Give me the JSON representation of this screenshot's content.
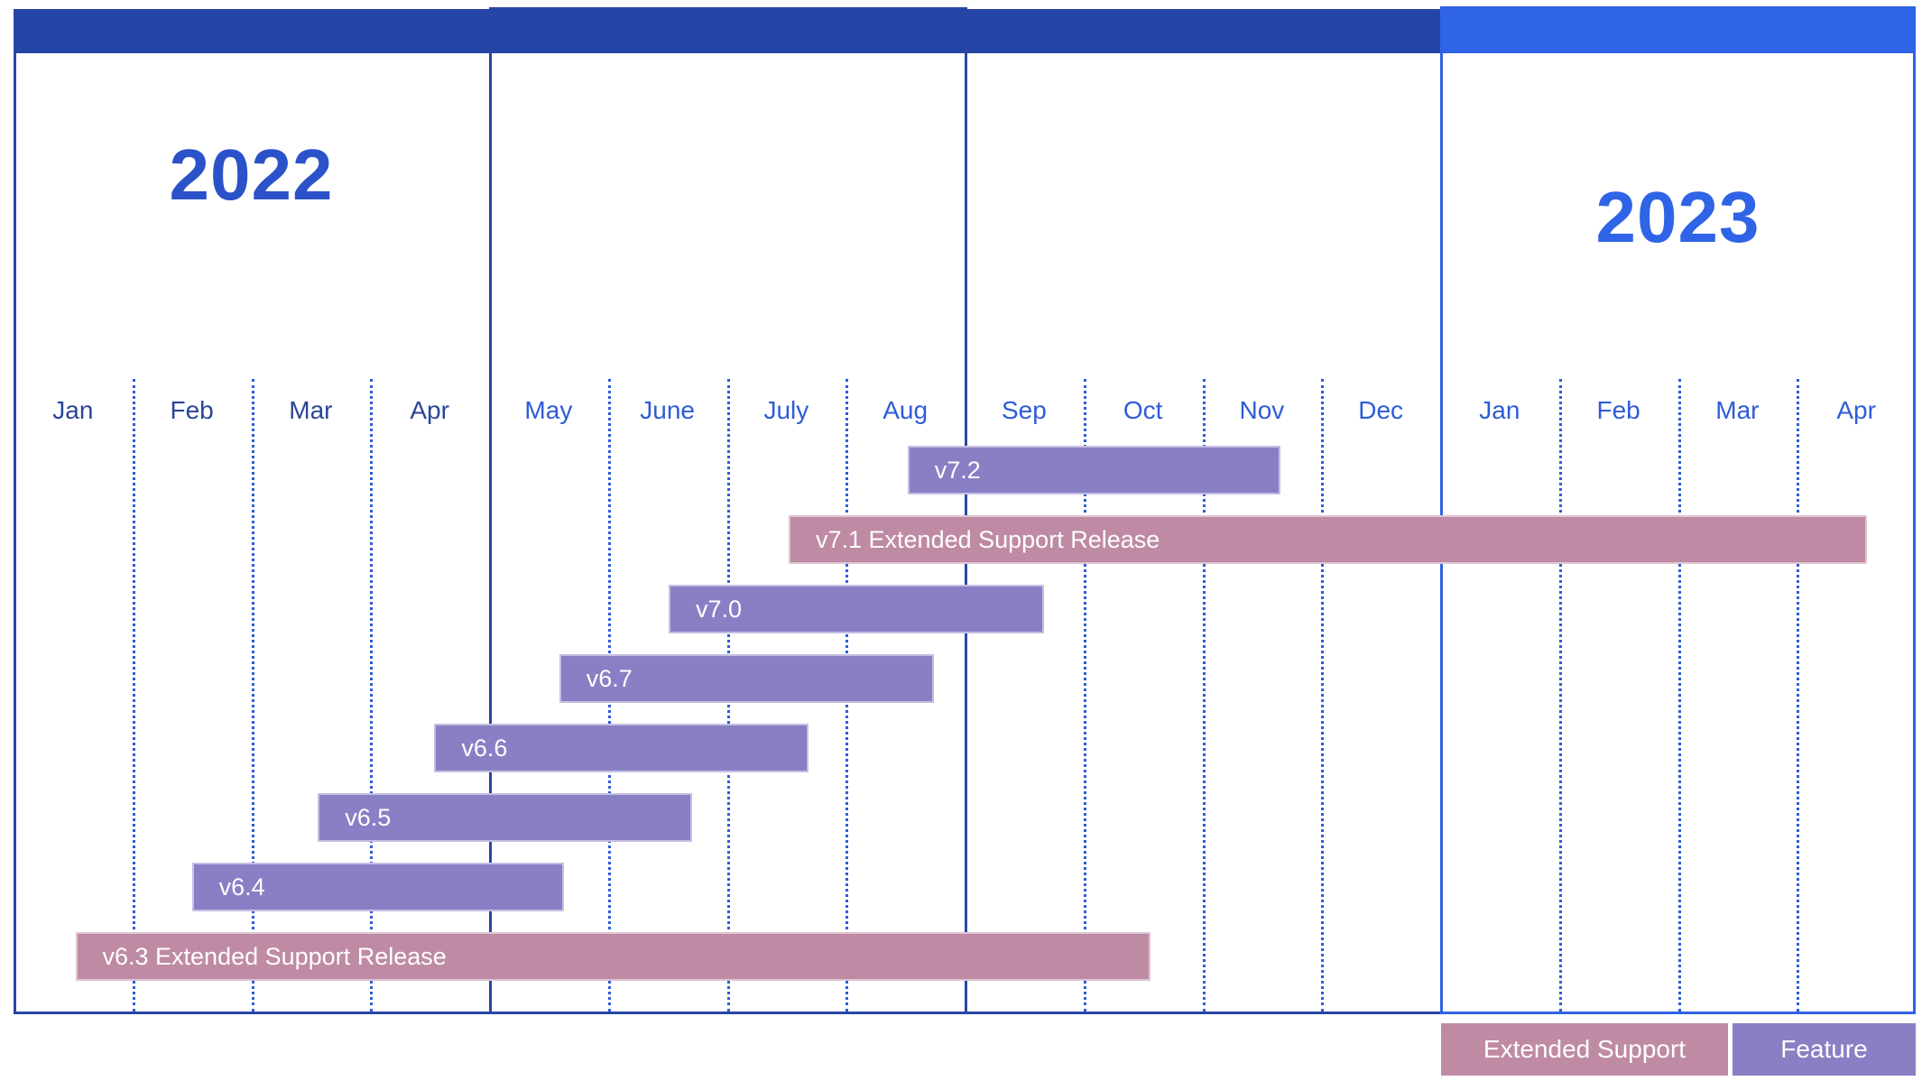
{
  "page": {
    "background": "#ffffff"
  },
  "years": [
    {
      "label": "2022",
      "color": "#2b52c9"
    },
    {
      "label": "2023",
      "color": "#2f64e6"
    }
  ],
  "chart_data": {
    "type": "gantt",
    "title": "",
    "x_axis": {
      "unit": "month",
      "range_months": [
        0,
        16
      ],
      "months": [
        "Jan",
        "Feb",
        "Mar",
        "Apr",
        "May",
        "June",
        "July",
        "Aug",
        "Sep",
        "Oct",
        "Nov",
        "Dec",
        "Jan",
        "Feb",
        "Mar",
        "Apr"
      ],
      "month_years": [
        2022,
        2022,
        2022,
        2022,
        2022,
        2022,
        2022,
        2022,
        2022,
        2022,
        2022,
        2022,
        2023,
        2023,
        2023,
        2023
      ],
      "quarter_boundaries_month_index": [
        4,
        8,
        12
      ],
      "grid": "dotted-month-lines"
    },
    "rows": [
      {
        "label": "v7.2",
        "type": "feature",
        "start_month": 7.52,
        "end_month": 10.66
      },
      {
        "label": "v7.1 Extended Support Release",
        "type": "extended_support",
        "start_month": 6.52,
        "end_month": 15.59
      },
      {
        "label": "v7.0",
        "type": "feature",
        "start_month": 5.51,
        "end_month": 8.67
      },
      {
        "label": "v6.7",
        "type": "feature",
        "start_month": 4.59,
        "end_month": 7.74
      },
      {
        "label": "v6.6",
        "type": "feature",
        "start_month": 3.54,
        "end_month": 6.69
      },
      {
        "label": "v6.5",
        "type": "feature",
        "start_month": 2.56,
        "end_month": 5.71
      },
      {
        "label": "v6.4",
        "type": "feature",
        "start_month": 1.5,
        "end_month": 4.63
      },
      {
        "label": "v6.3 Extended Support Release",
        "type": "extended_support",
        "start_month": 0.52,
        "end_month": 9.56
      }
    ],
    "legend": [
      {
        "label": "Extended Support Release",
        "color": "#bf8aa4",
        "type": "extended_support"
      },
      {
        "label": "Feature Release",
        "color": "#897fc4",
        "type": "feature"
      }
    ],
    "colors": {
      "feature": "#897fc4",
      "extended_support": "#bf8aa4",
      "header_2022": "#2444a6",
      "header_2023": "#2f64e6",
      "border_2022": "#2847a5",
      "border_2023": "#2e63e6",
      "month_label_past": "#2b4695",
      "month_label": "#2e5cd8"
    },
    "legend_position": "bottom-right"
  }
}
